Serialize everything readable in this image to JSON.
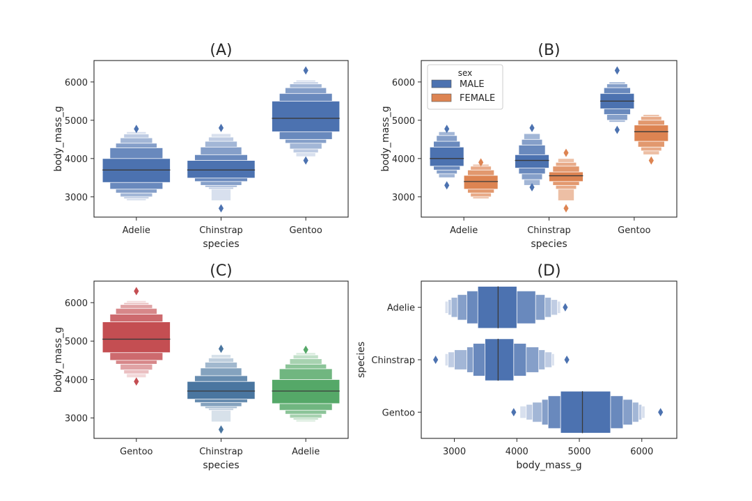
{
  "figure": {
    "description_free": true
  },
  "colors": {
    "blue": "#4c72b0",
    "orange": "#dd8452",
    "red": "#c44e52",
    "steel": "#4a76a0",
    "green": "#55a868",
    "median": "#3a3a3a",
    "axis": "#262626"
  },
  "chart_data": [
    {
      "id": "A",
      "type": "boxenplot",
      "title": "(A)",
      "orient": "vertical",
      "xlabel": "species",
      "ylabel": "body_mass_g",
      "categories": [
        "Adelie",
        "Chinstrap",
        "Gentoo"
      ],
      "ylim": [
        2470,
        6560
      ],
      "yticks": [
        3000,
        4000,
        5000,
        6000
      ],
      "series": [
        {
          "name": "Adelie",
          "color": "#4c72b0",
          "offset": 0,
          "width": 0.8,
          "median": 3700,
          "boxes": [
            [
              3375,
              4000
            ],
            [
              3200,
              4280
            ],
            [
              3100,
              4400
            ],
            [
              3000,
              4540
            ],
            [
              2950,
              4640
            ],
            [
              2900,
              4700
            ]
          ],
          "outliers": [
            4775
          ]
        },
        {
          "name": "Chinstrap",
          "color": "#4c72b0",
          "offset": 0,
          "width": 0.8,
          "median": 3700,
          "boxes": [
            [
              3490,
              3950
            ],
            [
              3400,
              4100
            ],
            [
              3300,
              4300
            ],
            [
              3250,
              4450
            ],
            [
              3200,
              4560
            ],
            [
              2900,
              4650
            ]
          ],
          "outliers": [
            2700,
            4800
          ]
        },
        {
          "name": "Gentoo",
          "color": "#4c72b0",
          "offset": 0,
          "width": 0.8,
          "median": 5050,
          "boxes": [
            [
              4700,
              5500
            ],
            [
              4500,
              5700
            ],
            [
              4400,
              5850
            ],
            [
              4250,
              5950
            ],
            [
              4150,
              6000
            ],
            [
              4050,
              6050
            ]
          ],
          "outliers": [
            3950,
            6300
          ]
        }
      ]
    },
    {
      "id": "B",
      "type": "boxenplot",
      "title": "(B)",
      "orient": "vertical",
      "xlabel": "species",
      "ylabel": "body_mass_g",
      "categories": [
        "Adelie",
        "Chinstrap",
        "Gentoo"
      ],
      "ylim": [
        2470,
        6560
      ],
      "yticks": [
        3000,
        4000,
        5000,
        6000
      ],
      "legend": {
        "title": "sex",
        "position": "top-left",
        "entries": [
          {
            "label": "MALE",
            "color": "#4c72b0"
          },
          {
            "label": "FEMALE",
            "color": "#dd8452"
          }
        ]
      },
      "series": [
        {
          "name": "Adelie MALE",
          "category": 0,
          "color": "#4c72b0",
          "offset": -0.2,
          "width": 0.4,
          "median": 4000,
          "boxes": [
            [
              3800,
              4300
            ],
            [
              3700,
              4450
            ],
            [
              3600,
              4600
            ],
            [
              3500,
              4700
            ]
          ],
          "outliers": [
            3300,
            4775
          ]
        },
        {
          "name": "Adelie FEMALE",
          "category": 0,
          "color": "#dd8452",
          "offset": 0.2,
          "width": 0.4,
          "median": 3400,
          "boxes": [
            [
              3200,
              3560
            ],
            [
              3100,
              3700
            ],
            [
              3000,
              3800
            ],
            [
              2950,
              3850
            ]
          ],
          "outliers": [
            3900
          ]
        },
        {
          "name": "Chinstrap MALE",
          "category": 1,
          "color": "#4c72b0",
          "offset": -0.2,
          "width": 0.4,
          "median": 3950,
          "boxes": [
            [
              3750,
              4100
            ],
            [
              3600,
              4350
            ],
            [
              3450,
              4500
            ],
            [
              3300,
              4650
            ]
          ],
          "outliers": [
            3250,
            4800
          ]
        },
        {
          "name": "Chinstrap FEMALE",
          "category": 1,
          "color": "#dd8452",
          "offset": 0.2,
          "width": 0.4,
          "median": 3550,
          "boxes": [
            [
              3400,
              3650
            ],
            [
              3300,
              3800
            ],
            [
              3200,
              3900
            ],
            [
              2900,
              4000
            ]
          ],
          "outliers": [
            2700,
            4150
          ]
        },
        {
          "name": "Gentoo MALE",
          "category": 2,
          "color": "#4c72b0",
          "offset": -0.2,
          "width": 0.4,
          "median": 5500,
          "boxes": [
            [
              5300,
              5700
            ],
            [
              5150,
              5850
            ],
            [
              5000,
              5950
            ],
            [
              4950,
              6000
            ]
          ],
          "outliers": [
            4750,
            6300
          ]
        },
        {
          "name": "Gentoo FEMALE",
          "category": 2,
          "color": "#dd8452",
          "offset": 0.2,
          "width": 0.4,
          "median": 4700,
          "boxes": [
            [
              4450,
              4875
            ],
            [
              4300,
              5000
            ],
            [
              4200,
              5100
            ],
            [
              4100,
              5150
            ]
          ],
          "outliers": [
            3950
          ]
        }
      ]
    },
    {
      "id": "C",
      "type": "boxenplot",
      "title": "(C)",
      "orient": "vertical",
      "xlabel": "species",
      "ylabel": "body_mass_g",
      "categories": [
        "Gentoo",
        "Chinstrap",
        "Adelie"
      ],
      "ylim": [
        2470,
        6560
      ],
      "yticks": [
        3000,
        4000,
        5000,
        6000
      ],
      "series": [
        {
          "name": "Gentoo",
          "color": "#c44e52",
          "offset": 0,
          "width": 0.8,
          "median": 5050,
          "boxes": [
            [
              4700,
              5500
            ],
            [
              4500,
              5700
            ],
            [
              4400,
              5850
            ],
            [
              4250,
              5950
            ],
            [
              4150,
              6000
            ],
            [
              4050,
              6050
            ]
          ],
          "outliers": [
            3950,
            6300
          ]
        },
        {
          "name": "Chinstrap",
          "color": "#4a76a0",
          "offset": 0,
          "width": 0.8,
          "median": 3700,
          "boxes": [
            [
              3490,
              3950
            ],
            [
              3400,
              4100
            ],
            [
              3300,
              4300
            ],
            [
              3250,
              4450
            ],
            [
              3200,
              4560
            ],
            [
              2900,
              4650
            ]
          ],
          "outliers": [
            2700,
            4800
          ]
        },
        {
          "name": "Adelie",
          "color": "#55a868",
          "offset": 0,
          "width": 0.8,
          "median": 3700,
          "boxes": [
            [
              3375,
              4000
            ],
            [
              3200,
              4280
            ],
            [
              3100,
              4400
            ],
            [
              3000,
              4540
            ],
            [
              2950,
              4640
            ],
            [
              2900,
              4700
            ]
          ],
          "outliers": [
            4775
          ]
        }
      ]
    },
    {
      "id": "D",
      "type": "boxenplot",
      "title": "(D)",
      "orient": "horizontal",
      "xlabel": "body_mass_g",
      "ylabel": "species",
      "categories": [
        "Adelie",
        "Chinstrap",
        "Gentoo"
      ],
      "xlim": [
        2470,
        6560
      ],
      "xticks": [
        3000,
        4000,
        5000,
        6000
      ],
      "series": [
        {
          "name": "Adelie",
          "color": "#4c72b0",
          "offset": 0,
          "width": 0.8,
          "median": 3700,
          "boxes": [
            [
              3375,
              4000
            ],
            [
              3200,
              4300
            ],
            [
              3050,
              4450
            ],
            [
              2950,
              4550
            ],
            [
              2900,
              4650
            ],
            [
              2850,
              4700
            ]
          ],
          "outliers": [
            4775
          ]
        },
        {
          "name": "Chinstrap",
          "color": "#4c72b0",
          "offset": 0,
          "width": 0.8,
          "median": 3700,
          "boxes": [
            [
              3490,
              3950
            ],
            [
              3300,
              4150
            ],
            [
              3200,
              4350
            ],
            [
              3000,
              4450
            ],
            [
              2900,
              4560
            ],
            [
              2850,
              4600
            ]
          ],
          "outliers": [
            2700,
            4800
          ]
        },
        {
          "name": "Gentoo",
          "color": "#4c72b0",
          "offset": 0,
          "width": 0.8,
          "median": 5050,
          "boxes": [
            [
              4700,
              5500
            ],
            [
              4500,
              5700
            ],
            [
              4400,
              5850
            ],
            [
              4250,
              5950
            ],
            [
              4150,
              6000
            ],
            [
              4050,
              6050
            ]
          ],
          "outliers": [
            3950,
            6300
          ]
        }
      ]
    }
  ]
}
